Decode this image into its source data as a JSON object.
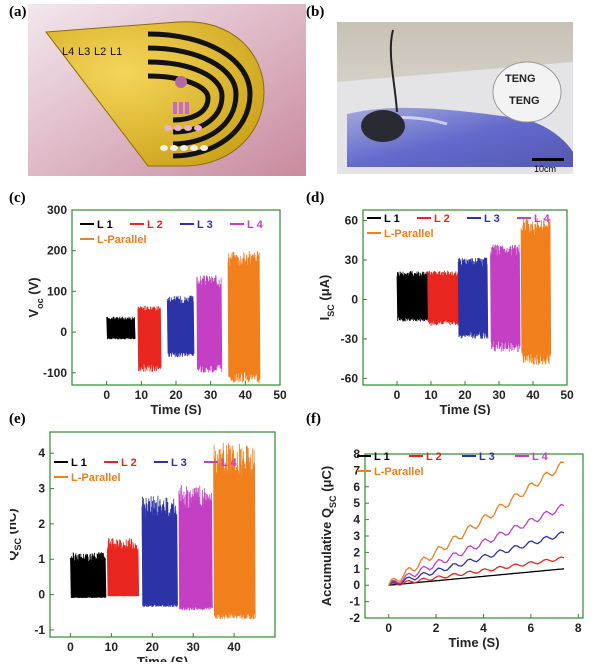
{
  "panel_labels": [
    "(a)",
    "(b)",
    "(c)",
    "(d)",
    "(e)",
    "(f)"
  ],
  "photo_a": {
    "layer_labels": [
      "L4",
      "L3",
      "L2",
      "L1"
    ]
  },
  "photo_b": {
    "teng_labels": [
      "TENG",
      "TENG"
    ],
    "scale_bar": "10cm"
  },
  "colors": {
    "L 1": "#000000",
    "L 2": "#e8261f",
    "L 3": "#2b33a6",
    "L 4": "#c43fc4",
    "L-Parallel": "#f07f1c",
    "axis": "#2e8b2e"
  },
  "chart_data": [
    {
      "id": "c",
      "type": "line",
      "xlabel": "Time (S)",
      "ylabel": "V_oc (V)",
      "xlim": [
        -10,
        50
      ],
      "ylim": [
        -130,
        300
      ],
      "xticks": [
        0,
        10,
        20,
        30,
        40,
        50
      ],
      "yticks": [
        -100,
        0,
        100,
        200,
        300
      ],
      "legend": [
        "L 1",
        "L 2",
        "L 3",
        "L 4",
        "L-Parallel"
      ],
      "series": [
        {
          "name": "L 1",
          "t_start": 0,
          "t_end": 8,
          "min": -18,
          "max": 38
        },
        {
          "name": "L 2",
          "t_start": 9,
          "t_end": 15.5,
          "min": -98,
          "max": 65
        },
        {
          "name": "L 3",
          "t_start": 17.5,
          "t_end": 25,
          "min": -62,
          "max": 90
        },
        {
          "name": "L 4",
          "t_start": 26,
          "t_end": 33,
          "min": -100,
          "max": 140
        },
        {
          "name": "L-Parallel",
          "t_start": 35,
          "t_end": 44,
          "min": -125,
          "max": 200
        }
      ]
    },
    {
      "id": "d",
      "type": "line",
      "xlabel": "Time (S)",
      "ylabel": "I_SC (μA)",
      "xlim": [
        -10,
        50
      ],
      "ylim": [
        -65,
        68
      ],
      "xticks": [
        0,
        10,
        20,
        30,
        40,
        50
      ],
      "yticks": [
        -60,
        -30,
        0,
        30,
        60
      ],
      "legend": [
        "L 1",
        "L 2",
        "L 3",
        "L 4",
        "L-Parallel"
      ],
      "series": [
        {
          "name": "L 1",
          "t_start": 0,
          "t_end": 9,
          "min": -17,
          "max": 22
        },
        {
          "name": "L 2",
          "t_start": 9,
          "t_end": 18,
          "min": -20,
          "max": 22
        },
        {
          "name": "L 3",
          "t_start": 18,
          "t_end": 26.5,
          "min": -30,
          "max": 32
        },
        {
          "name": "L 4",
          "t_start": 27.5,
          "t_end": 36,
          "min": -40,
          "max": 42
        },
        {
          "name": "L-Parallel",
          "t_start": 36.5,
          "t_end": 45,
          "min": -50,
          "max": 62
        }
      ]
    },
    {
      "id": "e",
      "type": "line",
      "xlabel": "Time (S)",
      "ylabel": "Q_SC (nC)",
      "xlim": [
        -5,
        50
      ],
      "ylim": [
        -1.2,
        4.6
      ],
      "xticks": [
        0,
        10,
        20,
        30,
        40
      ],
      "yticks": [
        -1,
        0,
        1,
        2,
        3,
        4
      ],
      "legend": [
        "L 1",
        "L 2",
        "L 3",
        "L 4",
        "L-Parallel"
      ],
      "series": [
        {
          "name": "L 1",
          "t_start": 0,
          "t_end": 8.5,
          "min": -0.1,
          "max": 1.2
        },
        {
          "name": "L 2",
          "t_start": 9,
          "t_end": 16.5,
          "min": -0.05,
          "max": 1.6
        },
        {
          "name": "L 3",
          "t_start": 17.5,
          "t_end": 26,
          "min": -0.35,
          "max": 2.8
        },
        {
          "name": "L 4",
          "t_start": 26.5,
          "t_end": 34.5,
          "min": -0.45,
          "max": 3.1
        },
        {
          "name": "L-Parallel",
          "t_start": 35,
          "t_end": 45,
          "min": -0.7,
          "max": 4.3
        }
      ]
    },
    {
      "id": "f",
      "type": "line",
      "xlabel": "Time (S)",
      "ylabel": "Accumulative Q_SC (μC)",
      "xlim": [
        -1,
        8.2
      ],
      "ylim": [
        -2,
        8
      ],
      "xticks": [
        0,
        2,
        4,
        6,
        8
      ],
      "yticks": [
        -2,
        -1,
        0,
        1,
        2,
        3,
        4,
        5,
        6,
        7,
        8
      ],
      "legend": [
        "L 1",
        "L 2",
        "L 3",
        "L 4",
        "L-Parallel"
      ],
      "series": [
        {
          "name": "L 1",
          "x": [
            0,
            7.4
          ],
          "y": [
            0,
            1.0
          ]
        },
        {
          "name": "L 2",
          "x": [
            0,
            7.4
          ],
          "y": [
            0,
            1.65
          ]
        },
        {
          "name": "L 3",
          "x": [
            0,
            7.4
          ],
          "y": [
            0,
            3.15
          ]
        },
        {
          "name": "L 4",
          "x": [
            0,
            7.4
          ],
          "y": [
            0,
            4.8
          ]
        },
        {
          "name": "L-Parallel",
          "x": [
            0,
            7.4
          ],
          "y": [
            0,
            7.4
          ]
        }
      ]
    }
  ]
}
